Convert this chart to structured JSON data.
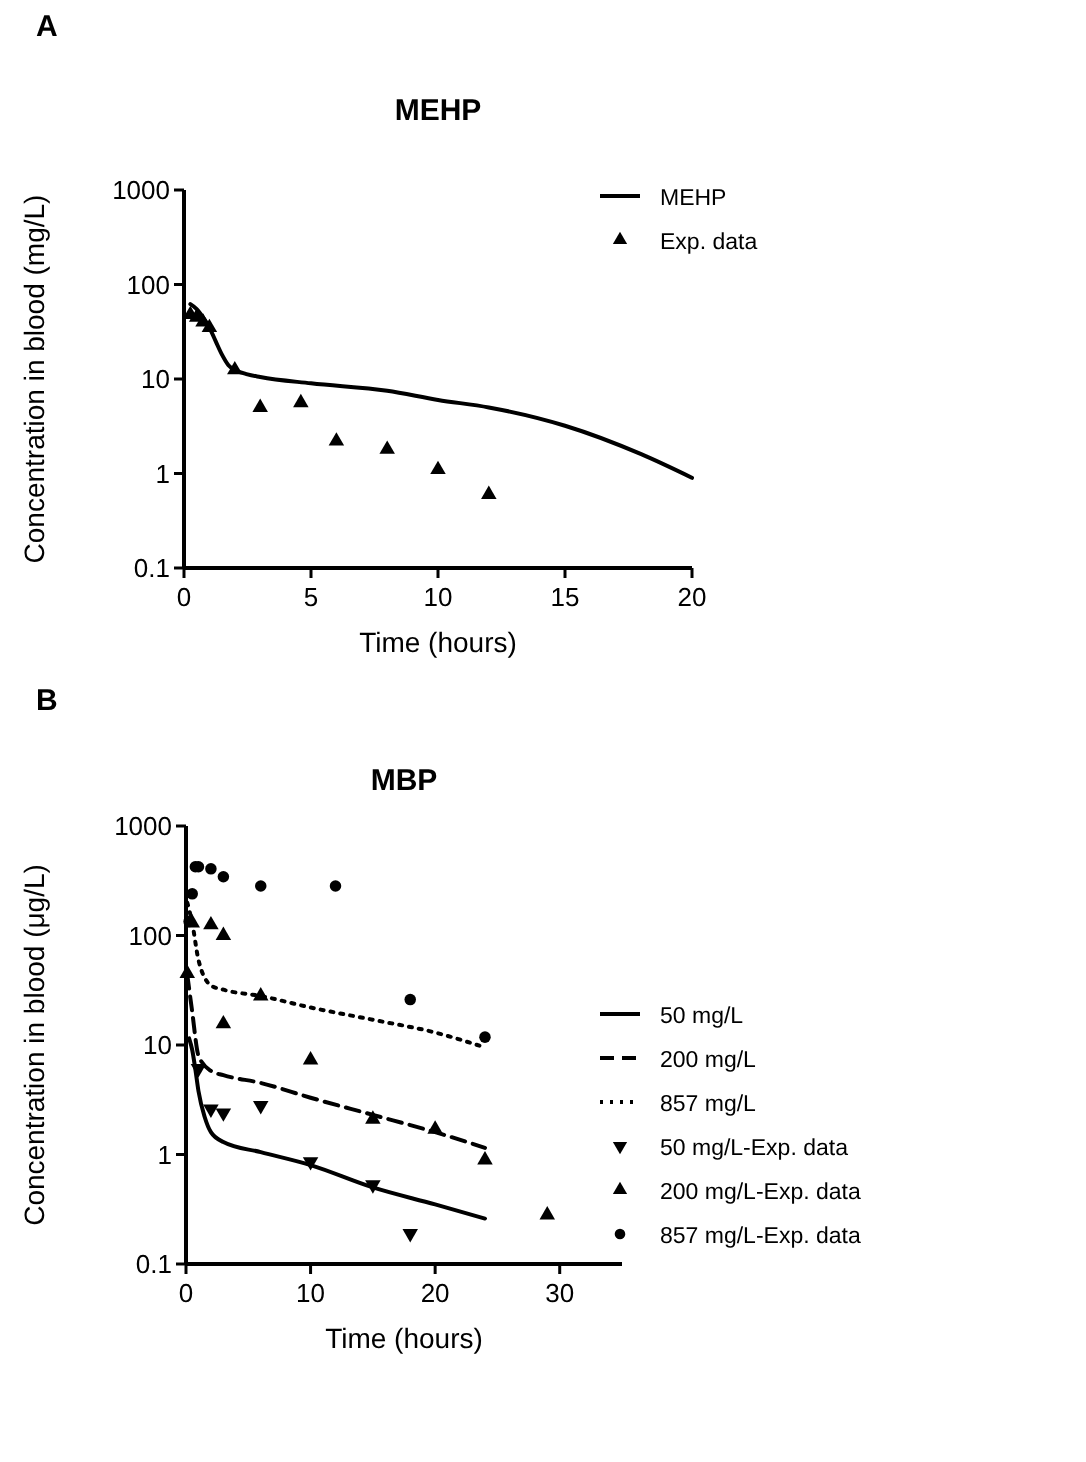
{
  "chart_data": [
    {
      "type": "line",
      "title": "MEHP",
      "xlabel": "Time (hours)",
      "ylabel": "Concentration in blood (mg/L)",
      "annotations": [
        "A"
      ],
      "xlim": [
        0,
        20
      ],
      "xticks": [
        0,
        5,
        10,
        15,
        20
      ],
      "ylim": [
        0.1,
        1000
      ],
      "yticks": [
        {
          "value": 0.1,
          "label": "0.1"
        },
        1,
        10,
        100,
        1000
      ],
      "log": "y",
      "grid": false,
      "legend": "top right",
      "series": [
        {
          "name": "MEHP",
          "color": "#000000",
          "line_style": "solid",
          "marker": "none",
          "x": [
            0.25,
            0.5,
            0.75,
            1,
            1.25,
            1.5,
            1.75,
            2,
            2.5,
            3,
            5,
            8,
            10,
            12,
            15,
            18,
            20
          ],
          "values": [
            62,
            55,
            45,
            35,
            25,
            18,
            14,
            12.5,
            11.2,
            10.5,
            9,
            7.5,
            6,
            5,
            3.2,
            1.6,
            0.9
          ]
        },
        {
          "name": "Exp. data",
          "type": "scatter",
          "color": "#000000",
          "marker": "triangle",
          "x": [
            0.25,
            0.5,
            0.75,
            1,
            2,
            3,
            4.6,
            6,
            8,
            10,
            12
          ],
          "values": [
            48,
            45,
            40,
            35,
            12.5,
            5,
            5.6,
            2.2,
            1.8,
            1.1,
            0.6
          ]
        }
      ]
    },
    {
      "type": "line",
      "title": "MBP",
      "xlabel": "Time (hours)",
      "ylabel": "Concentration in blood (μg/L)",
      "annotations": [
        "B"
      ],
      "xlim": [
        0,
        35
      ],
      "xticks": [
        0,
        10,
        20,
        30
      ],
      "ylim": [
        0.1,
        1000
      ],
      "yticks": [
        {
          "value": 0.1,
          "label": "0.1"
        },
        1,
        10,
        100,
        1000
      ],
      "log": "y",
      "grid": false,
      "legend": "right",
      "series": [
        {
          "name": "50 mg/L",
          "color": "#000000",
          "line_style": "solid",
          "marker": "none",
          "x": [
            0.25,
            0.5,
            0.75,
            1,
            1.5,
            2,
            3,
            6,
            10,
            15,
            20,
            24
          ],
          "values": [
            11.5,
            9,
            6,
            3.8,
            2.2,
            1.6,
            1.3,
            1.05,
            0.8,
            0.5,
            0.35,
            0.26
          ]
        },
        {
          "name": "200 mg/L",
          "color": "#000000",
          "line_style": "dashed",
          "marker": "none",
          "x": [
            0.1,
            0.5,
            1,
            2,
            3,
            6,
            10,
            15,
            20,
            24
          ],
          "values": [
            44,
            20,
            8,
            5.8,
            5.3,
            4.5,
            3.3,
            2.3,
            1.6,
            1.15
          ]
        },
        {
          "name": "857 mg/L",
          "color": "#000000",
          "line_style": "dotted",
          "marker": "none",
          "x": [
            0.1,
            0.5,
            1,
            2,
            3,
            6,
            10,
            15,
            20,
            24
          ],
          "values": [
            200,
            130,
            60,
            35,
            32,
            28,
            22,
            17,
            13,
            9.5
          ]
        },
        {
          "name": "50 mg/L-Exp. data",
          "type": "scatter",
          "color": "#000000",
          "marker": "triangle-down",
          "x": [
            1,
            2,
            3,
            6,
            10,
            15,
            18
          ],
          "values": [
            6.1,
            2.6,
            2.4,
            2.8,
            0.86,
            0.53,
            0.19
          ]
        },
        {
          "name": "200 mg/L-Exp. data",
          "type": "scatter",
          "color": "#000000",
          "marker": "triangle",
          "x": [
            0.1,
            0.5,
            2,
            3,
            3,
            6,
            10,
            15,
            20,
            24,
            29
          ],
          "values": [
            45,
            130,
            125,
            100,
            15.6,
            28,
            7.3,
            2.1,
            1.7,
            0.89,
            0.28
          ]
        },
        {
          "name": "857 mg/L-Exp. data",
          "type": "scatter",
          "color": "#000000",
          "marker": "circle",
          "x": [
            0.25,
            0.5,
            0.75,
            1,
            2,
            3,
            6,
            12,
            18,
            24
          ],
          "values": [
            134,
            240,
            424,
            424,
            406,
            344,
            283,
            283,
            26,
            11.8
          ]
        }
      ]
    }
  ]
}
